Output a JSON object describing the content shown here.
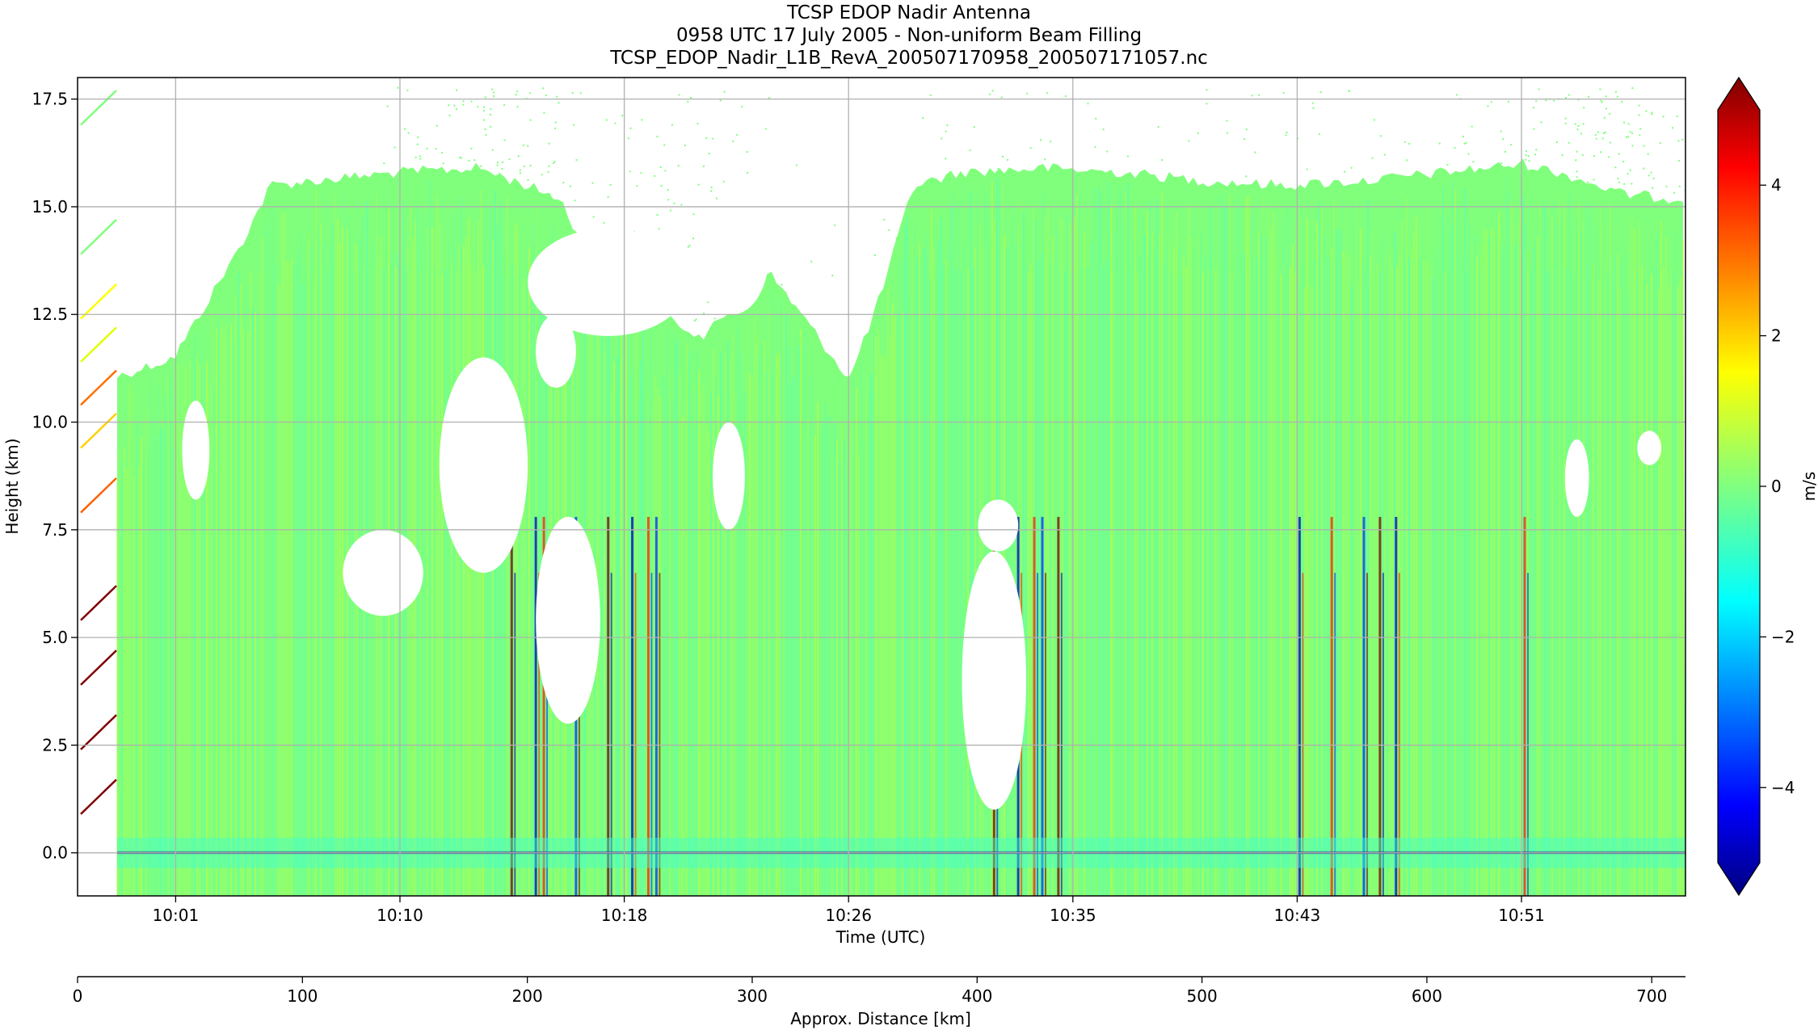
{
  "chart_data": {
    "type": "heatmap",
    "title": [
      "TCSP EDOP Nadir Antenna",
      "0958 UTC 17 July 2005 - Non-uniform Beam Filling",
      "TCSP_EDOP_Nadir_L1B_RevA_200507170958_200507171057.nc"
    ],
    "xlabel": "Time (UTC)",
    "ylabel": "Height (km)",
    "x_tick_labels": [
      "10:01",
      "10:10",
      "10:18",
      "10:26",
      "10:35",
      "10:43",
      "10:51"
    ],
    "y_ticks": [
      0.0,
      2.5,
      5.0,
      7.5,
      10.0,
      12.5,
      15.0,
      17.5
    ],
    "y_tick_labels": [
      "0.0",
      "2.5",
      "5.0",
      "7.5",
      "10.0",
      "12.5",
      "15.0",
      "17.5"
    ],
    "ylim": [
      -1.0,
      18.0
    ],
    "grid": true,
    "colorbar": {
      "label": "m/s",
      "range": [
        -5,
        5
      ],
      "ticks": [
        -4,
        -2,
        0,
        2,
        4
      ],
      "tick_labels": [
        "−4",
        "−2",
        "0",
        "2",
        "4"
      ],
      "extend": "both",
      "colormap": "jet"
    },
    "secondary_xaxis": {
      "label": "Approx. Distance [km]",
      "ticks": [
        0,
        100,
        200,
        300,
        400,
        500,
        600,
        700
      ],
      "tick_labels": [
        "0",
        "100",
        "200",
        "300",
        "400",
        "500",
        "600",
        "700"
      ],
      "xlim": [
        0,
        715
      ]
    },
    "echo_top_km": [
      [
        0.02,
        11.0
      ],
      [
        0.06,
        11.5
      ],
      [
        0.1,
        14.0
      ],
      [
        0.12,
        15.5
      ],
      [
        0.2,
        15.8
      ],
      [
        0.25,
        15.9
      ],
      [
        0.3,
        15.2
      ],
      [
        0.33,
        13.0
      ],
      [
        0.36,
        12.5
      ],
      [
        0.39,
        12.0
      ],
      [
        0.43,
        13.5
      ],
      [
        0.45,
        12.5
      ],
      [
        0.48,
        11.0
      ],
      [
        0.5,
        13.0
      ],
      [
        0.52,
        15.5
      ],
      [
        0.55,
        15.8
      ],
      [
        0.6,
        15.9
      ],
      [
        0.65,
        15.8
      ],
      [
        0.7,
        15.6
      ],
      [
        0.75,
        15.5
      ],
      [
        0.8,
        15.6
      ],
      [
        0.85,
        15.8
      ],
      [
        0.9,
        16.0
      ],
      [
        0.93,
        15.7
      ],
      [
        0.96,
        15.3
      ],
      [
        0.99,
        15.2
      ]
    ],
    "echo_gaps_km": [
      {
        "x": [
          0.065,
          0.082
        ],
        "y": [
          8.2,
          10.5
        ]
      },
      {
        "x": [
          0.165,
          0.215
        ],
        "y": [
          5.5,
          7.5
        ]
      },
      {
        "x": [
          0.225,
          0.28
        ],
        "y": [
          6.5,
          11.5
        ]
      },
      {
        "x": [
          0.28,
          0.38
        ],
        "y": [
          12.0,
          14.5
        ]
      },
      {
        "x": [
          0.285,
          0.31
        ],
        "y": [
          10.8,
          12.5
        ]
      },
      {
        "x": [
          0.285,
          0.325
        ],
        "y": [
          3.0,
          7.8
        ]
      },
      {
        "x": [
          0.385,
          0.43
        ],
        "y": [
          12.5,
          15.3
        ]
      },
      {
        "x": [
          0.395,
          0.415
        ],
        "y": [
          7.5,
          10.0
        ]
      },
      {
        "x": [
          0.55,
          0.59
        ],
        "y": [
          1.0,
          7.0
        ]
      },
      {
        "x": [
          0.56,
          0.585
        ],
        "y": [
          7.0,
          8.2
        ]
      },
      {
        "x": [
          0.925,
          0.94
        ],
        "y": [
          7.8,
          9.6
        ]
      },
      {
        "x": [
          0.97,
          0.985
        ],
        "y": [
          9.0,
          9.8
        ]
      }
    ],
    "strong_updraft_columns_x": [
      0.27,
      0.285,
      0.29,
      0.31,
      0.33,
      0.345,
      0.355,
      0.36,
      0.57,
      0.585,
      0.595,
      0.6,
      0.61,
      0.76,
      0.78,
      0.8,
      0.81,
      0.82,
      0.9
    ]
  }
}
